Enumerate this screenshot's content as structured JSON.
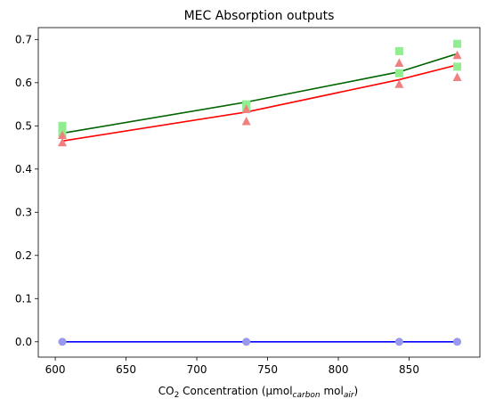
{
  "chart_data": {
    "type": "scatter",
    "title": "MEC Absorption outputs",
    "xlabel": {
      "prefix": "CO",
      "co2_sub": "2",
      "middle": " Concentration (µmol",
      "carbon_sub": "carbon",
      "mol": " mol",
      "air_sub": "air",
      "suffix": ")"
    },
    "ylabel": "",
    "xlim": [
      588,
      900
    ],
    "ylim": [
      -0.0355,
      0.7275
    ],
    "xticks": [
      600,
      650,
      700,
      750,
      800,
      850
    ],
    "yticks": [
      0.0,
      0.1,
      0.2,
      0.3,
      0.4,
      0.5,
      0.6,
      0.7
    ],
    "ytick_labels": [
      "0.0",
      "0.1",
      "0.2",
      "0.3",
      "0.4",
      "0.5",
      "0.6",
      "0.7"
    ],
    "grid": false,
    "legend": "none",
    "series": [
      {
        "marker": "square",
        "color": "#90ee90",
        "points": [
          [
            605,
            0.5
          ],
          [
            605,
            0.483
          ],
          [
            735,
            0.55
          ],
          [
            735,
            0.54
          ],
          [
            843,
            0.673
          ],
          [
            843,
            0.622
          ],
          [
            884,
            0.69
          ],
          [
            884,
            0.637
          ]
        ],
        "fit": {
          "color": "#006400",
          "points": [
            [
              605,
              0.483
            ],
            [
              735,
              0.555
            ],
            [
              843,
              0.625
            ],
            [
              884,
              0.667
            ]
          ]
        }
      },
      {
        "marker": "triangle",
        "color": "#f08080",
        "points": [
          [
            605,
            0.478
          ],
          [
            605,
            0.461
          ],
          [
            735,
            0.538
          ],
          [
            735,
            0.51
          ],
          [
            843,
            0.645
          ],
          [
            843,
            0.596
          ],
          [
            884,
            0.663
          ],
          [
            884,
            0.612
          ]
        ],
        "fit": {
          "color": "#ff0000",
          "points": [
            [
              605,
              0.465
            ],
            [
              735,
              0.532
            ],
            [
              843,
              0.607
            ],
            [
              884,
              0.641
            ]
          ]
        }
      },
      {
        "marker": "circle",
        "color": "#9999ee",
        "points": [
          [
            605,
            0.0
          ],
          [
            735,
            0.0
          ],
          [
            843,
            0.0
          ],
          [
            884,
            0.0
          ]
        ],
        "fit": {
          "color": "#0000ff",
          "points": [
            [
              605,
              0.0
            ],
            [
              735,
              0.0
            ],
            [
              843,
              0.0
            ],
            [
              884,
              0.0
            ]
          ]
        }
      }
    ]
  }
}
